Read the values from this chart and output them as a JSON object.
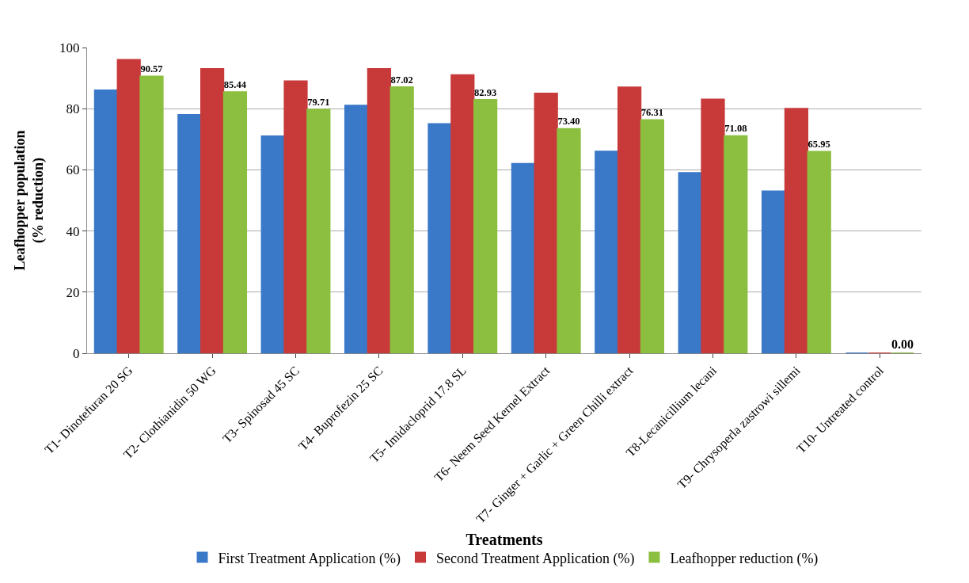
{
  "chart_data": {
    "type": "bar",
    "xlabel": "Treatments",
    "ylabel": "Leafhopper population\n(% reduction)",
    "categories": [
      "T1- Dinotefuran 20 SG",
      "T2- Clothianidin 50 WG",
      "T3- Spinosad 45 SC",
      "T4- Buprofezin 25 SC",
      "T5- Imidacloprid 17.8 SL",
      "T6- Neem Seed Kernel Extract",
      "T7- Ginger + Garlic + Green Chilli extract",
      "T8-Lecanicillium lecani",
      "T9- Chrysoperla zastrowi sillemi",
      "T10- Untreated control"
    ],
    "series": [
      {
        "name": "First Treatment Application (%)",
        "color": "#3a78c8",
        "values": [
          86,
          78,
          71,
          81,
          75,
          62,
          66,
          59,
          53,
          0
        ]
      },
      {
        "name": "Second Treatment Application (%)",
        "color": "#c83a3a",
        "values": [
          96,
          93,
          89,
          93,
          91,
          85,
          87,
          83,
          80,
          0
        ]
      },
      {
        "name": "Leafhopper reduction (%)",
        "color": "#8cbf3f",
        "values": [
          90.57,
          85.44,
          79.71,
          87.02,
          82.93,
          73.4,
          76.31,
          71.08,
          65.95,
          0.0
        ],
        "value_labels": [
          "90.57",
          "85.44",
          "79.71",
          "87.02",
          "82.93",
          "73.40",
          "76.31",
          "71.08",
          "65.95",
          "0.00"
        ]
      }
    ],
    "ylim": [
      0,
      100
    ],
    "yticks": [
      0,
      20,
      40,
      60,
      80,
      100
    ],
    "grid": "y",
    "legend": "bottom"
  }
}
